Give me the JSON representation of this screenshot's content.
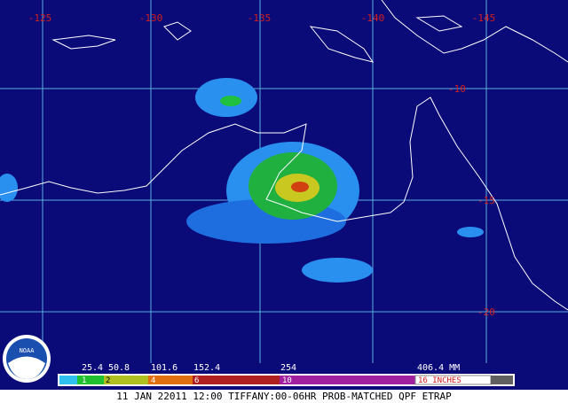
{
  "map": {
    "longitude_labels": [
      "-125",
      "-130",
      "-135",
      "-140",
      "-145"
    ],
    "latitude_labels": [
      "-10",
      "-15",
      "-20"
    ],
    "legend": {
      "mm_labels": [
        "25.4",
        "50.8",
        "101.6",
        "152.4",
        "254",
        "406.4 MM"
      ],
      "inch_labels": [
        "1",
        "2",
        "4",
        "6",
        "10",
        "16 INCHES"
      ]
    },
    "footer": "11 JAN 22011 12:00 TIFFANY:00-06HR PROB-MATCHED QPF ETRAP",
    "logo": "NOAA"
  }
}
